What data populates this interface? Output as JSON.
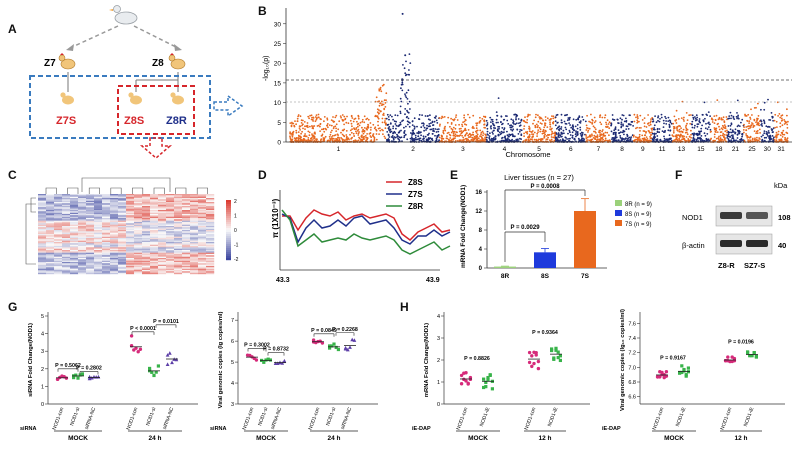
{
  "panels": {
    "A": {
      "letter": "A",
      "parents": [
        "Z7",
        "Z8"
      ],
      "offspring": [
        "Z7S",
        "Z8S",
        "Z8R"
      ],
      "colors": {
        "z7s": "#d6262b",
        "z8s": "#d6262b",
        "z8r": "#1f2f8a",
        "box_blue": "#3a7bbf",
        "box_red": "#d6262b"
      }
    },
    "B": {
      "letter": "B",
      "ylabel": "-log₁₀(p)",
      "xlabel": "Chromosome",
      "chromosomes": [
        "1",
        "2",
        "3",
        "4",
        "5",
        "6",
        "7",
        "8",
        "9",
        "11",
        "13",
        "15",
        "18",
        "21",
        "25",
        "30",
        "31"
      ],
      "y_ticks": [
        "0",
        "5",
        "10",
        "15",
        "20",
        "25",
        "30"
      ],
      "colors": {
        "orange": "#e8681e",
        "navy": "#1c2a73"
      }
    },
    "C": {
      "letter": "C",
      "legend_ticks": [
        "2",
        "1",
        "0",
        "-1",
        "-2"
      ]
    },
    "D": {
      "letter": "D",
      "ylabel": "π (1X10⁻³)",
      "x_ticks": [
        "43.3",
        "43.9"
      ],
      "series": [
        {
          "name": "Z8S",
          "color": "#d6262b"
        },
        {
          "name": "Z7S",
          "color": "#1f2f8a"
        },
        {
          "name": "Z8R",
          "color": "#2e8b3a"
        }
      ]
    },
    "E": {
      "letter": "E",
      "title": "Liver tissues (n = 27)",
      "ylabel": "mRNA Fold Change(NOD1)",
      "y_ticks": [
        "0",
        "4",
        "8",
        "12",
        "16"
      ],
      "chart_data": {
        "type": "bar",
        "categories": [
          "8R",
          "8S",
          "7S"
        ],
        "values": [
          0.3,
          3.3,
          12
        ],
        "errors": [
          0.1,
          0.8,
          2.6
        ],
        "colors": [
          "#9bd17a",
          "#1e3adc",
          "#e8681e"
        ],
        "ylim": [
          0,
          16
        ]
      },
      "p_values": [
        "P = 0.0029",
        "P = 0.0008"
      ],
      "legend": [
        "8R (n = 9)",
        "8S (n = 9)",
        "7S (n = 9)"
      ]
    },
    "F": {
      "letter": "F",
      "unit": "kDa",
      "rows": [
        {
          "label": "NOD1",
          "kda": "108"
        },
        {
          "label": "β-actin",
          "kda": "40"
        }
      ],
      "lanes": [
        "Z8-R",
        "SZ7-S"
      ]
    },
    "G": {
      "letter": "G",
      "left": {
        "ylabel": "siRNA Fold Change(NOD1)",
        "y_ticks": [
          "0",
          "1",
          "2",
          "3",
          "4",
          "5"
        ],
        "groups": [
          "NOD1-con",
          "NOD1-si",
          "siRNA-NC",
          "NOD1-con",
          "NOD1-si",
          "siRNA-NC"
        ],
        "row_label": "siRNA",
        "conditions": [
          "MOCK",
          "24 h"
        ],
        "p_values": [
          "P = 0.5062",
          "P = 0.2802",
          "P < 0.0001",
          "P = 0.0101"
        ]
      },
      "right": {
        "ylabel": "Viral genomic copies (lg copies/ml)",
        "y_ticks": [
          "3",
          "4",
          "5",
          "6",
          "7"
        ],
        "groups": [
          "NOD1-con",
          "NOD1-si",
          "siRNA-NC",
          "NOD1-con",
          "NOD1-si",
          "siRNA-NC"
        ],
        "row_label": "siRNA",
        "conditions": [
          "MOCK",
          "24 h"
        ],
        "p_values": [
          "P = 0.3002",
          "P = 0.8732",
          "P = 0.0849",
          "P = 0.2268"
        ]
      }
    },
    "H": {
      "letter": "H",
      "left": {
        "ylabel": "mRNA Fold Change(NOD1)",
        "y_ticks": [
          "0",
          "1",
          "2",
          "3",
          "4"
        ],
        "groups": [
          "NOD1-con",
          "NOD1-iE",
          "NOD1-con",
          "NOD1-iE"
        ],
        "row_label": "iE-DAP",
        "conditions": [
          "MOCK",
          "12 h"
        ],
        "p_values": [
          "P = 0.8826",
          "P = 0.9364"
        ]
      },
      "right": {
        "ylabel": "Viral genomic copies (lg₁₀ copies/ml)",
        "y_ticks": [
          "6.6",
          "6.8",
          "7.0",
          "7.2",
          "7.4",
          "7.6"
        ],
        "groups": [
          "NOD1-con",
          "NOD1-iE",
          "NOD1-con",
          "NOD1-iE"
        ],
        "row_label": "iE-DAP",
        "conditions": [
          "MOCK",
          "12 h"
        ],
        "p_values": [
          "P = 0.9167",
          "P = 0.0196"
        ]
      }
    }
  }
}
